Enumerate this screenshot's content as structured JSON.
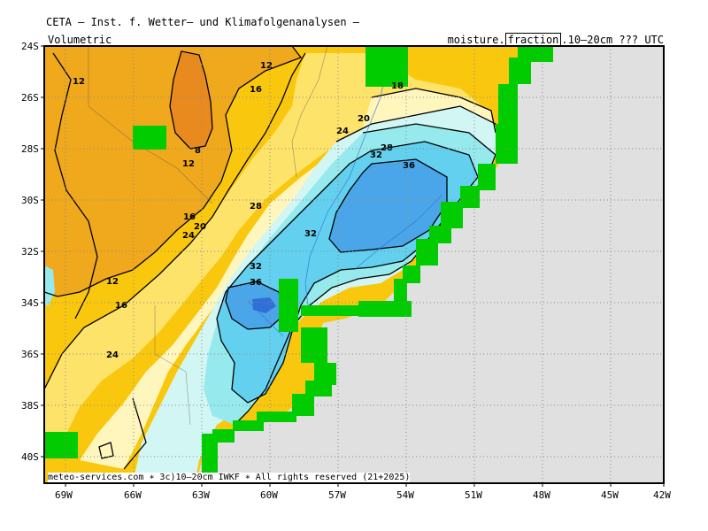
{
  "header": {
    "title": "CETA — Inst. f. Wetter— und Klimafolgenanalysen —",
    "variable_type": "Volumetric",
    "field_prefix": "moisture.",
    "field_boxed": "fraction",
    "field_suffix": ".10–20cm ??? UTC"
  },
  "footer": "meteo-services.com ∗ 3c)10–20cm IWKF ∗ All rights reserved (21+2025)",
  "axes": {
    "lat_labels": [
      "24S",
      "26S",
      "28S",
      "30S",
      "32S",
      "34S",
      "36S",
      "38S",
      "40S"
    ],
    "lon_labels": [
      "69W",
      "66W",
      "63W",
      "60W",
      "57W",
      "54W",
      "51W",
      "48W",
      "45W",
      "42W"
    ]
  },
  "contour_labels": [
    "12",
    "12",
    "16",
    "18",
    "20",
    "24",
    "28",
    "32",
    "36",
    "8",
    "12",
    "16",
    "20",
    "24",
    "28",
    "32",
    "32",
    "36",
    "12",
    "16",
    "24"
  ],
  "legend_colors": {
    "lt8": "#e88a1e",
    "8_12": "#f0a81c",
    "12_16": "#f9c80e",
    "16_20": "#fde36a",
    "20_24": "#fff6be",
    "24_28": "#d2f6f4",
    "28_32": "#96eaee",
    "32_36": "#62d0ee",
    "36_40": "#4aa6e8",
    "gt40": "#2f6fd8",
    "land_mask": "#00cc00",
    "ocean": "#e0e0e0"
  }
}
